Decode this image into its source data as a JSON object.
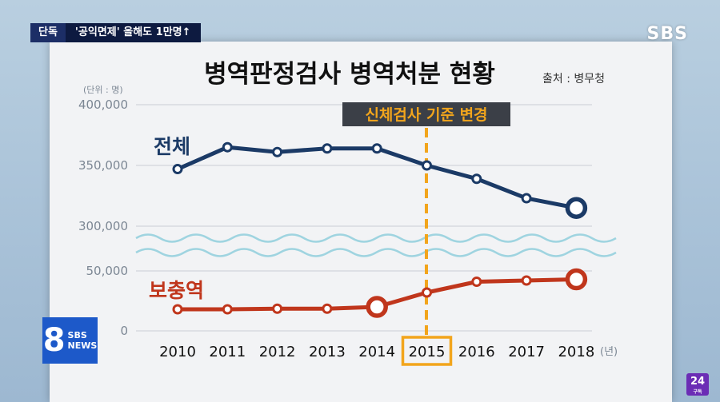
{
  "broadcast": {
    "tag": "단독",
    "headline": "'공익면제' 올해도 1만명↑",
    "logo": "SBS",
    "news_badge_number": "8",
    "news_badge_brand": "SBS",
    "news_badge_news": "NEWS",
    "badge_24": "24",
    "badge_24_sub": "구독"
  },
  "chart_data": {
    "type": "line",
    "title": "병역판정검사 병역처분 현황",
    "source": "출처 : 병무청",
    "unit_label": "(단위 : 명)",
    "x_unit": "(년)",
    "x": [
      "2010",
      "2011",
      "2012",
      "2013",
      "2014",
      "2015",
      "2016",
      "2017",
      "2018"
    ],
    "highlight_x": "2015",
    "annotation": "신체검사 기준 변경",
    "y_ticks_upper": [
      "400,000",
      "350,000",
      "300,000"
    ],
    "y_ticks_lower": [
      "50,000",
      "0"
    ],
    "y_break": true,
    "series": [
      {
        "name": "전체",
        "color": "#1b3a66",
        "values": [
          347000,
          365000,
          361000,
          364000,
          364000,
          350000,
          339000,
          323000,
          315000
        ]
      },
      {
        "name": "보충역",
        "color": "#c0361c",
        "values": [
          18000,
          18000,
          18500,
          18500,
          20000,
          32000,
          41000,
          42000,
          43000
        ]
      }
    ],
    "emphasized_points": {
      "전체": [
        8
      ],
      "보충역": [
        4,
        8
      ]
    },
    "grid": true,
    "colors": {
      "accent": "#f2a51c",
      "label_box": "#3b3f47"
    }
  }
}
